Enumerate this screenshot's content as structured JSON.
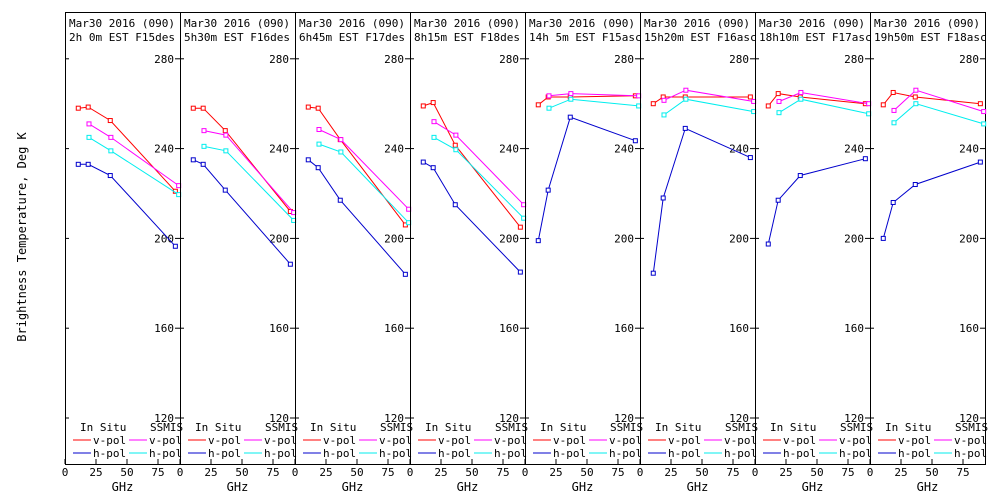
{
  "chart_data": {
    "type": "line",
    "ylabel": "Brightness Temperature, Deg K",
    "xlabel": "GHz",
    "xlim": [
      0,
      100
    ],
    "ylim": [
      110,
      290
    ],
    "x_ticks": [
      0,
      25,
      50,
      75
    ],
    "x_tick_labels": [
      "0",
      "25",
      "50",
      "75"
    ],
    "y_ticks": [
      120,
      160,
      200,
      240,
      280
    ],
    "y_tick_labels": [
      "120",
      "160",
      "200",
      "240",
      "280"
    ],
    "colors": {
      "insitu_v": "#ff0000",
      "insitu_h": "#0000cc",
      "ssmis_v": "#ff00ff",
      "ssmis_h": "#00eeee"
    },
    "legend": {
      "in_situ": "In Situ",
      "ssmis": "SSMIS",
      "v_pol": "v-pol",
      "h_pol": "h-pol"
    },
    "panels": [
      {
        "title1": "Mar30 2016 (090)",
        "title2": "2h 0m  EST F15des",
        "series": [
          {
            "name": "In Situ v-pol",
            "key": "insitu_v",
            "x": [
              10.7,
              18.7,
              36.5,
              89
            ],
            "y": [
              258,
              258.5,
              252.5,
              221
            ]
          },
          {
            "name": "In Situ h-pol",
            "key": "insitu_h",
            "x": [
              10.7,
              18.7,
              36.5,
              89
            ],
            "y": [
              233,
              233,
              228,
              196.5
            ]
          },
          {
            "name": "SSMIS v-pol",
            "key": "ssmis_v",
            "x": [
              19.35,
              37,
              91.66
            ],
            "y": [
              251,
              245,
              223.5
            ]
          },
          {
            "name": "SSMIS h-pol",
            "key": "ssmis_h",
            "x": [
              19.35,
              37,
              91.66
            ],
            "y": [
              245,
              239,
              219.5
            ]
          }
        ]
      },
      {
        "title1": "Mar30 2016 (090)",
        "title2": "5h30m  EST F16des",
        "series": [
          {
            "name": "In Situ v-pol",
            "key": "insitu_v",
            "x": [
              10.7,
              18.7,
              36.5,
              89
            ],
            "y": [
              258,
              258,
              248,
              212
            ]
          },
          {
            "name": "In Situ h-pol",
            "key": "insitu_h",
            "x": [
              10.7,
              18.7,
              36.5,
              89
            ],
            "y": [
              235,
              233,
              221.5,
              188.5
            ]
          },
          {
            "name": "SSMIS v-pol",
            "key": "ssmis_v",
            "x": [
              19.35,
              37,
              91.66
            ],
            "y": [
              248,
              246,
              211.5
            ]
          },
          {
            "name": "SSMIS h-pol",
            "key": "ssmis_h",
            "x": [
              19.35,
              37,
              91.66
            ],
            "y": [
              241,
              239,
              208
            ]
          }
        ]
      },
      {
        "title1": "Mar30 2016 (090)",
        "title2": "6h45m  EST F17des",
        "series": [
          {
            "name": "In Situ v-pol",
            "key": "insitu_v",
            "x": [
              10.7,
              18.7,
              36.5,
              89
            ],
            "y": [
              258.5,
              258,
              244,
              206
            ]
          },
          {
            "name": "In Situ h-pol",
            "key": "insitu_h",
            "x": [
              10.7,
              18.7,
              36.5,
              89
            ],
            "y": [
              235,
              231.5,
              217,
              184
            ]
          },
          {
            "name": "SSMIS v-pol",
            "key": "ssmis_v",
            "x": [
              19.35,
              37,
              91.66
            ],
            "y": [
              248.5,
              244,
              213
            ]
          },
          {
            "name": "SSMIS h-pol",
            "key": "ssmis_h",
            "x": [
              19.35,
              37,
              91.66
            ],
            "y": [
              242,
              238.5,
              207
            ]
          }
        ]
      },
      {
        "title1": "Mar30 2016 (090)",
        "title2": "8h15m  EST F18des",
        "series": [
          {
            "name": "In Situ v-pol",
            "key": "insitu_v",
            "x": [
              10.7,
              18.7,
              36.5,
              89
            ],
            "y": [
              259,
              260.5,
              241.5,
              205
            ]
          },
          {
            "name": "In Situ h-pol",
            "key": "insitu_h",
            "x": [
              10.7,
              18.7,
              36.5,
              89
            ],
            "y": [
              234,
              231.5,
              215,
              185
            ]
          },
          {
            "name": "SSMIS v-pol",
            "key": "ssmis_v",
            "x": [
              19.35,
              37,
              91.66
            ],
            "y": [
              252,
              246,
              215
            ]
          },
          {
            "name": "SSMIS h-pol",
            "key": "ssmis_h",
            "x": [
              19.35,
              37,
              91.66
            ],
            "y": [
              245,
              239.5,
              209
            ]
          }
        ]
      },
      {
        "title1": "Mar30 2016 (090)",
        "title2": "14h 5m  EST F15asc",
        "series": [
          {
            "name": "In Situ v-pol",
            "key": "insitu_v",
            "x": [
              10.7,
              18.7,
              36.5,
              89
            ],
            "y": [
              259.5,
              263,
              263,
              263.5
            ]
          },
          {
            "name": "In Situ h-pol",
            "key": "insitu_h",
            "x": [
              10.7,
              18.7,
              36.5,
              89
            ],
            "y": [
              199,
              221.5,
              254,
              243.5
            ]
          },
          {
            "name": "SSMIS v-pol",
            "key": "ssmis_v",
            "x": [
              19.35,
              37,
              91.66
            ],
            "y": [
              263.5,
              264.5,
              263.5
            ]
          },
          {
            "name": "SSMIS h-pol",
            "key": "ssmis_h",
            "x": [
              19.35,
              37,
              91.66
            ],
            "y": [
              258,
              262,
              259
            ]
          }
        ]
      },
      {
        "title1": "Mar30 2016 (090)",
        "title2": "15h20m  EST F16asc",
        "series": [
          {
            "name": "In Situ v-pol",
            "key": "insitu_v",
            "x": [
              10.7,
              18.7,
              36.5,
              89
            ],
            "y": [
              260,
              263,
              263,
              263
            ]
          },
          {
            "name": "In Situ h-pol",
            "key": "insitu_h",
            "x": [
              10.7,
              18.7,
              36.5,
              89
            ],
            "y": [
              184.5,
              218,
              249,
              236
            ]
          },
          {
            "name": "SSMIS v-pol",
            "key": "ssmis_v",
            "x": [
              19.35,
              37,
              91.66
            ],
            "y": [
              261.5,
              266,
              261
            ]
          },
          {
            "name": "SSMIS h-pol",
            "key": "ssmis_h",
            "x": [
              19.35,
              37,
              91.66
            ],
            "y": [
              255,
              262,
              256.5
            ]
          }
        ]
      },
      {
        "title1": "Mar30 2016 (090)",
        "title2": "18h10m  EST F17asc",
        "series": [
          {
            "name": "In Situ v-pol",
            "key": "insitu_v",
            "x": [
              10.7,
              18.7,
              36.5,
              89
            ],
            "y": [
              259,
              264.5,
              263,
              260
            ]
          },
          {
            "name": "In Situ h-pol",
            "key": "insitu_h",
            "x": [
              10.7,
              18.7,
              36.5,
              89
            ],
            "y": [
              197.5,
              217,
              228,
              235.5
            ]
          },
          {
            "name": "SSMIS v-pol",
            "key": "ssmis_v",
            "x": [
              19.35,
              37,
              91.66
            ],
            "y": [
              261,
              265,
              260
            ]
          },
          {
            "name": "SSMIS h-pol",
            "key": "ssmis_h",
            "x": [
              19.35,
              37,
              91.66
            ],
            "y": [
              256,
              262,
              255.5
            ]
          }
        ]
      },
      {
        "title1": "Mar30 2016 (090)",
        "title2": "19h50m  EST F18asc",
        "series": [
          {
            "name": "In Situ v-pol",
            "key": "insitu_v",
            "x": [
              10.7,
              18.7,
              36.5,
              89
            ],
            "y": [
              259.5,
              265,
              263,
              260
            ]
          },
          {
            "name": "In Situ h-pol",
            "key": "insitu_h",
            "x": [
              10.7,
              18.7,
              36.5,
              89
            ],
            "y": [
              200,
              216,
              224,
              234
            ]
          },
          {
            "name": "SSMIS v-pol",
            "key": "ssmis_v",
            "x": [
              19.35,
              37,
              91.66
            ],
            "y": [
              257,
              266,
              256.5
            ]
          },
          {
            "name": "SSMIS h-pol",
            "key": "ssmis_h",
            "x": [
              19.35,
              37,
              91.66
            ],
            "y": [
              251.5,
              260,
              251
            ]
          }
        ]
      }
    ]
  }
}
